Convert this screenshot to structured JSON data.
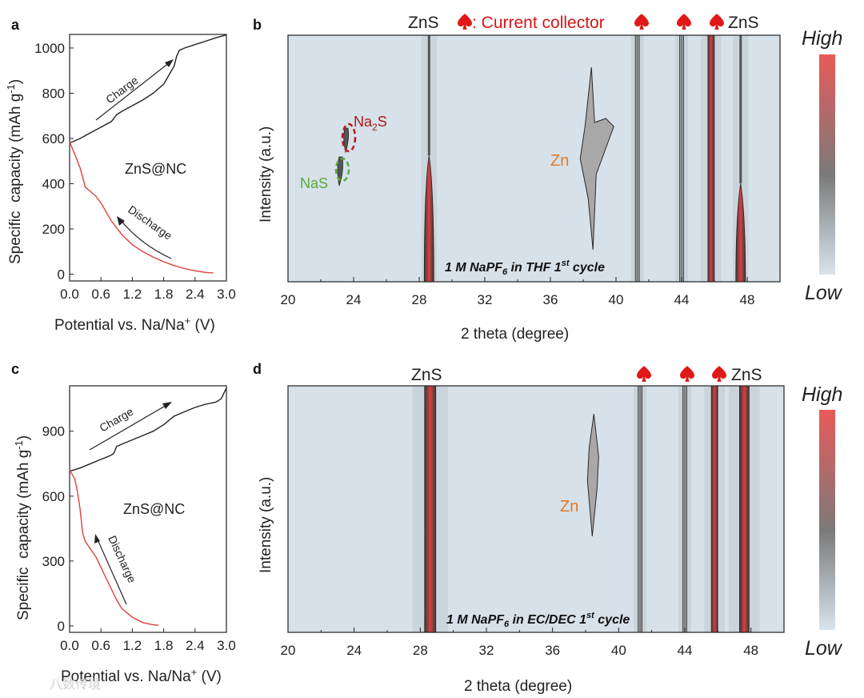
{
  "watermark": "八数传境",
  "colorbar": {
    "high": "High",
    "low": "Low",
    "top_color": "#e85a5a",
    "mid_color": "#7a7a7a",
    "bottom_color": "#d9e4ec"
  },
  "chart_data": [
    {
      "panel": "a",
      "type": "line",
      "xlabel": "Potential vs. Na/Na+ (V)",
      "ylabel": "Specific capacity (mAh g-1)",
      "xlim": [
        0,
        3.0
      ],
      "ylim": [
        -30,
        1060
      ],
      "xticks": [
        "0.0",
        "0.6",
        "1.2",
        "1.8",
        "2.4",
        "3.0"
      ],
      "yticks": [
        "0",
        "200",
        "400",
        "600",
        "800",
        "1000"
      ],
      "sample_label": "ZnS@NC",
      "charge_label": "Charge",
      "discharge_label": "Discharge",
      "series": [
        {
          "name": "Discharge",
          "color": "#e0403a",
          "x": [
            0.0,
            0.1,
            0.2,
            0.3,
            0.4,
            0.5,
            0.6,
            0.7,
            0.8,
            0.9,
            1.0,
            1.2,
            1.4,
            1.6,
            1.8,
            2.0,
            2.2,
            2.4,
            2.6,
            2.75
          ],
          "y": [
            585,
            530,
            470,
            385,
            365,
            345,
            315,
            275,
            235,
            205,
            175,
            130,
            100,
            75,
            55,
            38,
            25,
            15,
            8,
            5
          ]
        },
        {
          "name": "Charge",
          "color": "#222222",
          "x": [
            0.0,
            0.2,
            0.4,
            0.6,
            0.8,
            0.85,
            0.9,
            1.0,
            1.2,
            1.4,
            1.6,
            1.8,
            1.9,
            2.0,
            2.05,
            2.1,
            2.2,
            2.4,
            2.6,
            2.8,
            3.0
          ],
          "y": [
            580,
            600,
            625,
            650,
            675,
            690,
            705,
            720,
            745,
            770,
            800,
            840,
            880,
            920,
            965,
            990,
            1000,
            1015,
            1030,
            1045,
            1058
          ]
        }
      ]
    },
    {
      "panel": "b",
      "type": "heatmap",
      "xlabel": "2 theta (degree)",
      "ylabel": "Intensity (a.u.)",
      "xlim": [
        20,
        50
      ],
      "xticks": [
        "20",
        "24",
        "28",
        "32",
        "36",
        "40",
        "44",
        "48"
      ],
      "condition": "1 M NaPF6 in THF 1st cycle",
      "condition_parts": {
        "prefix": "1 M NaPF",
        "sub": "6",
        "mid": " in THF 1",
        "sup": "st",
        "suffix": " cycle"
      },
      "peak_labels": {
        "zns_left": "ZnS",
        "current_collector": ": Current collector",
        "zns_right": "ZnS",
        "zn": "Zn",
        "nas": "NaS",
        "na2s_prefix": "Na",
        "na2s_sub": "2",
        "na2s_suffix": "S"
      },
      "collector_peaks": [
        41.3,
        44.0,
        45.8
      ],
      "peaks": [
        {
          "pos": 28.6,
          "phase": "ZnS",
          "intensity": "high"
        },
        {
          "pos": 38.5,
          "phase": "Zn",
          "intensity": "medium"
        },
        {
          "pos": 41.3,
          "phase": "Current collector",
          "intensity": "medium"
        },
        {
          "pos": 44.0,
          "phase": "Current collector",
          "intensity": "medium"
        },
        {
          "pos": 45.8,
          "phase": "Current collector",
          "intensity": "high"
        },
        {
          "pos": 47.6,
          "phase": "ZnS",
          "intensity": "medium"
        },
        {
          "pos": 23.3,
          "phase": "NaS",
          "intensity": "low"
        },
        {
          "pos": 23.6,
          "phase": "Na2S",
          "intensity": "low"
        }
      ]
    },
    {
      "panel": "c",
      "type": "line",
      "xlabel": "Potential vs. Na/Na+ (V)",
      "ylabel": "Specific capacity (mAh g-1)",
      "xlim": [
        0,
        3.0
      ],
      "ylim": [
        -30,
        1110
      ],
      "xticks": [
        "0.0",
        "0.6",
        "1.2",
        "1.8",
        "2.4",
        "3.0"
      ],
      "yticks": [
        "0",
        "300",
        "600",
        "900"
      ],
      "sample_label": "ZnS@NC",
      "charge_label": "Charge",
      "discharge_label": "Discharge",
      "series": [
        {
          "name": "Discharge",
          "color": "#e0403a",
          "x": [
            0.0,
            0.1,
            0.15,
            0.2,
            0.25,
            0.3,
            0.4,
            0.5,
            0.6,
            0.7,
            0.8,
            0.9,
            1.0,
            1.2,
            1.4,
            1.6,
            1.7
          ],
          "y": [
            720,
            680,
            620,
            540,
            430,
            390,
            355,
            320,
            270,
            220,
            170,
            120,
            80,
            40,
            15,
            5,
            3
          ]
        },
        {
          "name": "Charge",
          "color": "#222222",
          "x": [
            0.0,
            0.2,
            0.4,
            0.6,
            0.8,
            0.85,
            0.9,
            1.0,
            1.2,
            1.4,
            1.6,
            1.8,
            2.0,
            2.2,
            2.4,
            2.6,
            2.8,
            2.9,
            3.0
          ],
          "y": [
            715,
            730,
            750,
            770,
            790,
            800,
            830,
            840,
            860,
            880,
            900,
            930,
            970,
            990,
            1010,
            1025,
            1035,
            1050,
            1100
          ]
        }
      ]
    },
    {
      "panel": "d",
      "type": "heatmap",
      "xlabel": "2 theta (degree)",
      "ylabel": "Intensity (a.u.)",
      "xlim": [
        20,
        50
      ],
      "xticks": [
        "20",
        "24",
        "28",
        "32",
        "36",
        "40",
        "44",
        "48"
      ],
      "condition": "1 M NaPF6 in EC/DEC 1st cycle",
      "condition_parts": {
        "prefix": "1 M NaPF",
        "sub": "6",
        "mid": " in EC/DEC 1",
        "sup": "st",
        "suffix": " cycle"
      },
      "peak_labels": {
        "zns_left": "ZnS",
        "zns_right": "ZnS",
        "zn": "Zn"
      },
      "collector_peaks": [
        41.3,
        44.0,
        45.8
      ],
      "peaks": [
        {
          "pos": 28.6,
          "phase": "ZnS",
          "intensity": "high"
        },
        {
          "pos": 38.5,
          "phase": "Zn",
          "intensity": "medium"
        },
        {
          "pos": 41.3,
          "phase": "Current collector",
          "intensity": "medium"
        },
        {
          "pos": 44.0,
          "phase": "Current collector",
          "intensity": "medium"
        },
        {
          "pos": 45.8,
          "phase": "Current collector",
          "intensity": "high"
        },
        {
          "pos": 47.6,
          "phase": "ZnS",
          "intensity": "high"
        }
      ]
    }
  ]
}
